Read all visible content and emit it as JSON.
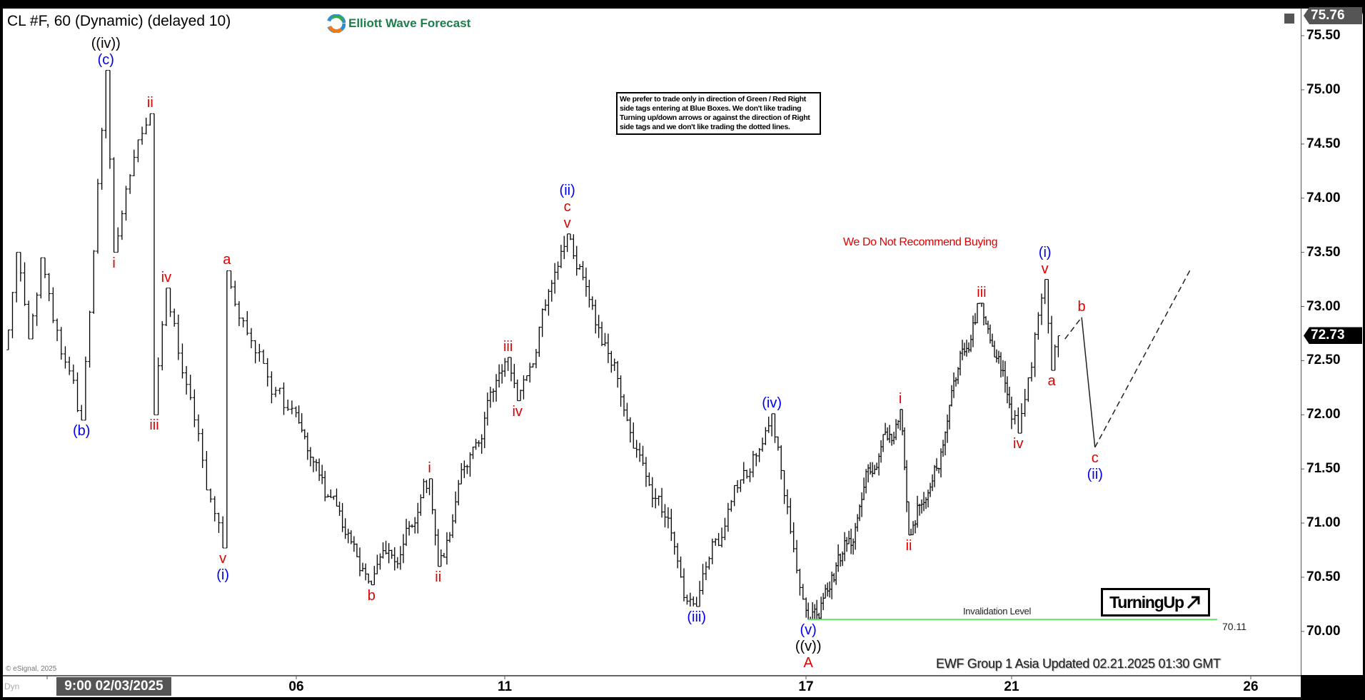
{
  "header": {
    "symbol_title": "CL #F, 60 (Dynamic) (delayed 10)",
    "logo_text": "Elliott Wave Forecast"
  },
  "notice_text": "We prefer to trade only in direction of Green / Red Right side tags entering at Blue Boxes. We don't like trading Turning up/down arrows or against the direction of Right side tags and we don't like trading the dotted lines.",
  "warning_text": "We Do Not Recommend Buying",
  "turning_label": "TurningUp",
  "invalidation": {
    "label": "Invalidation Level",
    "value": "70.11",
    "price": 70.11,
    "color": "#66dd66"
  },
  "footer_text": "EWF Group 1 Asia Updated 02.21.2025 01:30 GMT",
  "copyright": "© eSignal, 2025",
  "dyn_label": "Dyn",
  "colors": {
    "red_label": "#e00000",
    "blue_label": "#0000ee",
    "black_label": "#000000",
    "bars": "#000000"
  },
  "chart_data": {
    "type": "ohlc-bar",
    "interval": "60 min",
    "ylim": [
      69.6,
      75.76
    ],
    "y_ticks": [
      "75.50",
      "75.00",
      "74.50",
      "74.00",
      "73.50",
      "73.00",
      "72.50",
      "72.00",
      "71.50",
      "71.00",
      "70.50",
      "70.00"
    ],
    "x_tick_labels": [
      "9:00 02/03/2025",
      "06",
      "11",
      "17",
      "21",
      "26"
    ],
    "high_tag": "75.76",
    "last_price_tag": "72.73",
    "wave_pivots": [
      {
        "time": "2025-02-03 00:00",
        "price": 72.6,
        "labels": []
      },
      {
        "time": "2025-02-03 03:00",
        "price": 73.5,
        "labels": []
      },
      {
        "time": "2025-02-03 06:00",
        "price": 72.7,
        "labels": []
      },
      {
        "time": "2025-02-03 09:00",
        "price": 73.45,
        "labels": []
      },
      {
        "time": "2025-02-03 19:00",
        "price": 71.95,
        "side": "below",
        "labels": [
          {
            "text": "(b)",
            "color": "blue"
          }
        ]
      },
      {
        "time": "2025-02-04 01:00",
        "price": 75.18,
        "side": "above",
        "labels": [
          {
            "text": "(c)",
            "color": "blue"
          },
          {
            "text": "((iv))",
            "color": "black"
          }
        ]
      },
      {
        "time": "2025-02-04 03:00",
        "price": 73.5,
        "side": "below",
        "labels": [
          {
            "text": "i",
            "color": "red"
          }
        ]
      },
      {
        "time": "2025-02-04 12:00",
        "price": 74.78,
        "side": "above",
        "labels": [
          {
            "text": "ii",
            "color": "red"
          }
        ]
      },
      {
        "time": "2025-02-04 13:00",
        "price": 72.0,
        "side": "below",
        "labels": [
          {
            "text": "iii",
            "color": "red"
          }
        ]
      },
      {
        "time": "2025-02-04 16:00",
        "price": 73.17,
        "side": "above",
        "labels": [
          {
            "text": "iv",
            "color": "red"
          }
        ]
      },
      {
        "time": "2025-02-05 06:00",
        "price": 70.77,
        "side": "below",
        "labels": [
          {
            "text": "v",
            "color": "red"
          },
          {
            "text": "(i)",
            "color": "blue"
          }
        ]
      },
      {
        "time": "2025-02-05 07:00",
        "price": 73.33,
        "side": "above",
        "labels": [
          {
            "text": "a",
            "color": "red"
          }
        ]
      },
      {
        "time": "2025-02-07 02:00",
        "price": 70.43,
        "side": "below",
        "labels": [
          {
            "text": "b",
            "color": "red"
          }
        ]
      },
      {
        "time": "2025-02-07 22:00",
        "price": 71.41,
        "side": "above",
        "labels": [
          {
            "text": "i",
            "color": "red"
          }
        ]
      },
      {
        "time": "2025-02-10 01:00",
        "price": 70.6,
        "side": "below",
        "labels": [
          {
            "text": "ii",
            "color": "red"
          }
        ]
      },
      {
        "time": "2025-02-11 01:00",
        "price": 72.53,
        "side": "above",
        "labels": [
          {
            "text": "iii",
            "color": "red"
          }
        ]
      },
      {
        "time": "2025-02-11 04:00",
        "price": 72.13,
        "side": "below",
        "labels": [
          {
            "text": "iv",
            "color": "red"
          }
        ]
      },
      {
        "time": "2025-02-11 20:00",
        "price": 73.67,
        "side": "above",
        "labels": [
          {
            "text": "v",
            "color": "red"
          },
          {
            "text": "c",
            "color": "red"
          },
          {
            "text": "(ii)",
            "color": "blue"
          }
        ]
      },
      {
        "time": "2025-02-13 13:00",
        "price": 70.23,
        "side": "below",
        "labels": [
          {
            "text": "(iii)",
            "color": "blue"
          }
        ]
      },
      {
        "time": "2025-02-14 13:00",
        "price": 72.01,
        "side": "above",
        "labels": [
          {
            "text": "(iv)",
            "color": "blue"
          }
        ]
      },
      {
        "time": "2025-02-17 01:00",
        "price": 70.11,
        "side": "below",
        "labels": [
          {
            "text": "(v)",
            "color": "blue"
          },
          {
            "text": "((v))",
            "color": "black"
          },
          {
            "text": "A",
            "color": "red"
          }
        ]
      },
      {
        "time": "2025-02-18 20:00",
        "price": 72.05,
        "side": "above",
        "labels": [
          {
            "text": "i",
            "color": "red"
          }
        ]
      },
      {
        "time": "2025-02-19 00:00",
        "price": 70.89,
        "side": "below",
        "labels": [
          {
            "text": "ii",
            "color": "red"
          }
        ]
      },
      {
        "time": "2025-02-20 10:00",
        "price": 73.03,
        "side": "above",
        "labels": [
          {
            "text": "iii",
            "color": "red"
          }
        ]
      },
      {
        "time": "2025-02-21 02:00",
        "price": 71.83,
        "side": "below",
        "labels": [
          {
            "text": "iv",
            "color": "red"
          }
        ]
      },
      {
        "time": "2025-02-21 10:00",
        "price": 73.25,
        "side": "above",
        "labels": [
          {
            "text": "v",
            "color": "red"
          },
          {
            "text": "(i)",
            "color": "blue"
          }
        ]
      },
      {
        "time": "2025-02-21 12:00",
        "price": 72.41,
        "side": "below",
        "labels": [
          {
            "text": "a",
            "color": "red"
          }
        ]
      },
      {
        "time": "2025-02-21 14:00",
        "price": 72.73,
        "labels": []
      }
    ],
    "projection": [
      {
        "time": "2025-02-21 16:00",
        "price": 72.7,
        "style": "dashed",
        "labels": []
      },
      {
        "time": "2025-02-21 21:00",
        "price": 72.9,
        "style": "solid",
        "side": "above",
        "labels": [
          {
            "text": "b",
            "color": "red"
          }
        ]
      },
      {
        "time": "2025-02-24 01:00",
        "price": 71.7,
        "style": "dashed",
        "side": "below",
        "labels": [
          {
            "text": "c",
            "color": "red"
          },
          {
            "text": "(ii)",
            "color": "blue"
          }
        ]
      },
      {
        "time": "2025-02-25 06:00",
        "price": 73.35,
        "labels": []
      }
    ]
  }
}
